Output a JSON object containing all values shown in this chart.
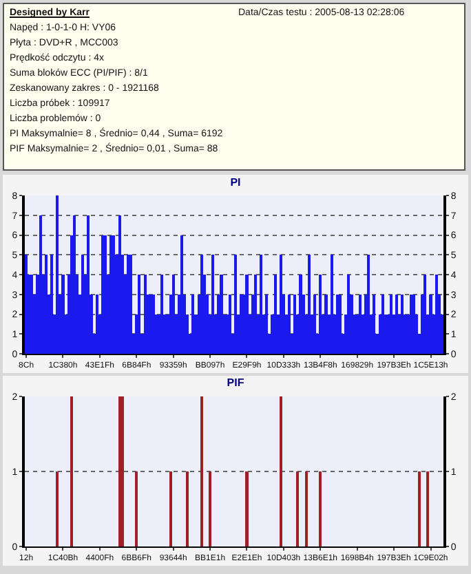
{
  "chart_data": [
    {
      "type": "other",
      "title": "Designed by Karr",
      "annotations": [
        "Data/Czas testu : 2005-08-13 02:28:06",
        "Napęd : 1-0-1-0 H: VY06",
        "Płyta : DVD+R , MCC003",
        "Prędkość odczytu : 4x",
        "Suma bloków ECC (PI/PIF) : 8/1",
        "Zeskanowany zakres : 0 - 1921168",
        "Liczba próbek : 109917",
        "Liczba problemów : 0",
        "PI Maksymalnie= 8 , Średnio= 0,44 , Suma= 6192",
        "PIF Maksymalnie= 2 , Średnio= 0,01 , Suma= 88"
      ]
    },
    {
      "type": "bar",
      "title": "PI",
      "color": "#1a1aee",
      "grid": "y",
      "ylim": [
        0,
        8
      ],
      "yticks": [
        0,
        1,
        2,
        3,
        4,
        5,
        6,
        7,
        8
      ],
      "y2lim": [
        0,
        8
      ],
      "y2ticks": [
        0,
        1,
        2,
        3,
        4,
        5,
        6,
        7,
        8
      ],
      "categories": [
        "8Ch",
        null,
        null,
        null,
        null,
        null,
        null,
        null,
        null,
        null,
        null,
        null,
        null,
        "1C380h",
        null,
        null,
        null,
        null,
        null,
        null,
        null,
        null,
        null,
        null,
        null,
        null,
        "43E1Fh",
        null,
        null,
        null,
        null,
        null,
        null,
        null,
        null,
        null,
        null,
        null,
        null,
        "6B84Fh",
        null,
        null,
        null,
        null,
        null,
        null,
        null,
        null,
        null,
        null,
        null,
        null,
        "93359h",
        null,
        null,
        null,
        null,
        null,
        null,
        null,
        null,
        null,
        null,
        null,
        null,
        "BB097h",
        null,
        null,
        null,
        null,
        null,
        null,
        null,
        null,
        null,
        null,
        null,
        null,
        "E29F9h",
        null,
        null,
        null,
        null,
        null,
        null,
        null,
        null,
        null,
        null,
        null,
        null,
        "10D333h",
        null,
        null,
        null,
        null,
        null,
        null,
        null,
        null,
        null,
        null,
        null,
        null,
        "13B4F8h",
        null,
        null,
        null,
        null,
        null,
        null,
        null,
        null,
        null,
        null,
        null,
        null,
        "169829h",
        null,
        null,
        null,
        null,
        null,
        null,
        null,
        null,
        null,
        null,
        null,
        null,
        "197B3Eh",
        null,
        null,
        null,
        null,
        null,
        null,
        null,
        null,
        null,
        null,
        null,
        null,
        "1C5E13h",
        null,
        null,
        null,
        null
      ],
      "values": [
        5,
        4,
        4,
        3,
        4,
        7,
        4,
        5,
        3,
        5,
        2,
        8,
        3,
        4,
        2,
        4,
        6,
        7,
        4,
        3,
        5,
        4,
        7,
        3,
        1,
        3,
        2,
        6,
        6,
        4,
        6,
        6,
        5,
        7,
        5,
        4,
        5,
        5,
        1,
        2,
        4,
        1,
        4,
        3,
        3,
        3,
        2,
        2,
        4,
        2,
        2,
        3,
        4,
        2,
        3,
        6,
        3,
        2,
        1,
        3,
        2,
        3,
        5,
        4,
        3,
        2,
        5,
        2,
        3,
        4,
        2,
        2,
        3,
        1,
        5,
        2,
        3,
        3,
        4,
        2,
        3,
        4,
        2,
        5,
        2,
        3,
        1,
        2,
        4,
        2,
        5,
        3,
        2,
        3,
        1,
        3,
        2,
        4,
        3,
        2,
        5,
        2,
        3,
        1,
        4,
        2,
        3,
        2,
        5,
        2,
        3,
        3,
        1,
        2,
        4,
        3,
        2,
        2,
        3,
        2,
        3,
        5,
        2,
        3,
        1,
        2,
        3,
        2,
        2,
        3,
        2,
        3,
        2,
        3,
        2,
        2,
        3,
        3,
        2,
        1,
        3,
        4,
        2,
        3,
        2,
        4,
        3,
        2
      ]
    },
    {
      "type": "bar",
      "title": "PIF",
      "color": "#a0202a",
      "grid": "y",
      "ylim": [
        0,
        2
      ],
      "yticks": [
        0,
        1,
        2
      ],
      "y2lim": [
        0,
        2
      ],
      "y2ticks": [
        0,
        1,
        2
      ],
      "categories": [
        "12h",
        null,
        null,
        null,
        null,
        null,
        null,
        null,
        null,
        null,
        null,
        null,
        null,
        "1C40Bh",
        null,
        null,
        null,
        null,
        null,
        null,
        null,
        null,
        null,
        null,
        null,
        null,
        "4400Fh",
        null,
        null,
        null,
        null,
        null,
        null,
        null,
        null,
        null,
        null,
        null,
        null,
        "6BB6Fh",
        null,
        null,
        null,
        null,
        null,
        null,
        null,
        null,
        null,
        null,
        null,
        null,
        "93644h",
        null,
        null,
        null,
        null,
        null,
        null,
        null,
        null,
        null,
        null,
        null,
        null,
        "BB1E1h",
        null,
        null,
        null,
        null,
        null,
        null,
        null,
        null,
        null,
        null,
        null,
        null,
        "E2E1Eh",
        null,
        null,
        null,
        null,
        null,
        null,
        null,
        null,
        null,
        null,
        null,
        null,
        "10D403h",
        null,
        null,
        null,
        null,
        null,
        null,
        null,
        null,
        null,
        null,
        null,
        null,
        "13B6E1h",
        null,
        null,
        null,
        null,
        null,
        null,
        null,
        null,
        null,
        null,
        null,
        null,
        "1698B4h",
        null,
        null,
        null,
        null,
        null,
        null,
        null,
        null,
        null,
        null,
        null,
        null,
        "197B3Eh",
        null,
        null,
        null,
        null,
        null,
        null,
        null,
        null,
        null,
        null,
        null,
        null,
        "1C9E02h",
        null,
        null,
        null,
        null
      ],
      "values": [
        0,
        0,
        0,
        0,
        0,
        0,
        0,
        0,
        0,
        0,
        0,
        1,
        0,
        0,
        0,
        0,
        2,
        0,
        0,
        0,
        0,
        0,
        0,
        0,
        0,
        0,
        0,
        0,
        0,
        0,
        0,
        0,
        0,
        2,
        2,
        0,
        0,
        0,
        0,
        1,
        0,
        0,
        0,
        0,
        0,
        0,
        0,
        0,
        0,
        0,
        0,
        1,
        0,
        0,
        0,
        0,
        0,
        1,
        0,
        0,
        0,
        0,
        2,
        0,
        0,
        1,
        0,
        0,
        0,
        0,
        0,
        0,
        0,
        0,
        0,
        0,
        0,
        0,
        1,
        0,
        0,
        0,
        0,
        0,
        0,
        0,
        0,
        0,
        0,
        0,
        2,
        0,
        0,
        0,
        0,
        0,
        1,
        0,
        0,
        1,
        0,
        0,
        0,
        0,
        1,
        0,
        0,
        0,
        0,
        0,
        0,
        0,
        0,
        0,
        0,
        0,
        0,
        0,
        0,
        0,
        0,
        0,
        0,
        0,
        0,
        0,
        0,
        0,
        0,
        0,
        0,
        0,
        0,
        0,
        0,
        0,
        0,
        0,
        0,
        1,
        0,
        0,
        1,
        0,
        0,
        0,
        0,
        0
      ]
    }
  ]
}
